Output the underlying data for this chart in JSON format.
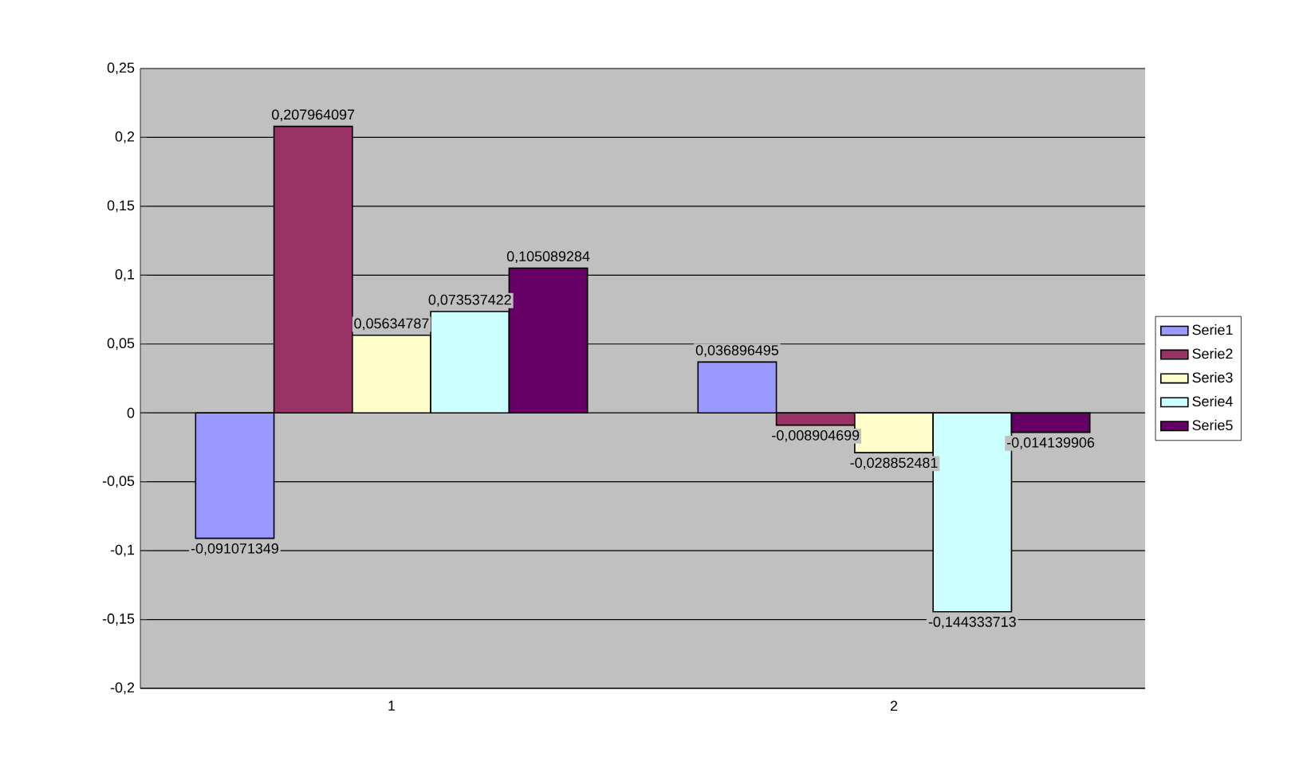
{
  "chart_data": {
    "type": "bar",
    "categories": [
      "1",
      "2"
    ],
    "series": [
      {
        "name": "Serie1",
        "color": "#9999ff",
        "values": [
          -0.091071349,
          0.036896495
        ],
        "value_labels": [
          "-0,091071349",
          "0,036896495"
        ]
      },
      {
        "name": "Serie2",
        "color": "#993366",
        "values": [
          0.207964097,
          -0.008904699
        ],
        "value_labels": [
          "0,207964097",
          "-0,008904699"
        ]
      },
      {
        "name": "Serie3",
        "color": "#ffffcc",
        "values": [
          0.05634787,
          -0.028852481
        ],
        "value_labels": [
          "0,05634787",
          "-0,028852481"
        ]
      },
      {
        "name": "Serie4",
        "color": "#ccffff",
        "values": [
          0.073537422,
          -0.144333713
        ],
        "value_labels": [
          "0,073537422",
          "-0,144333713"
        ]
      },
      {
        "name": "Serie5",
        "color": "#660066",
        "values": [
          0.105089284,
          -0.014139906
        ],
        "value_labels": [
          "0,105089284",
          "-0,014139906"
        ]
      }
    ],
    "ylim": [
      -0.2,
      0.25
    ],
    "yticks": [
      {
        "value": -0.2,
        "label": "-0,2"
      },
      {
        "value": -0.15,
        "label": "-0,15"
      },
      {
        "value": -0.1,
        "label": "-0,1"
      },
      {
        "value": -0.05,
        "label": "-0,05"
      },
      {
        "value": 0,
        "label": "0"
      },
      {
        "value": 0.05,
        "label": "0,05"
      },
      {
        "value": 0.1,
        "label": "0,1"
      },
      {
        "value": 0.15,
        "label": "0,15"
      },
      {
        "value": 0.2,
        "label": "0,2"
      },
      {
        "value": 0.25,
        "label": "0,25"
      }
    ],
    "grid": "y",
    "legend": "right"
  }
}
